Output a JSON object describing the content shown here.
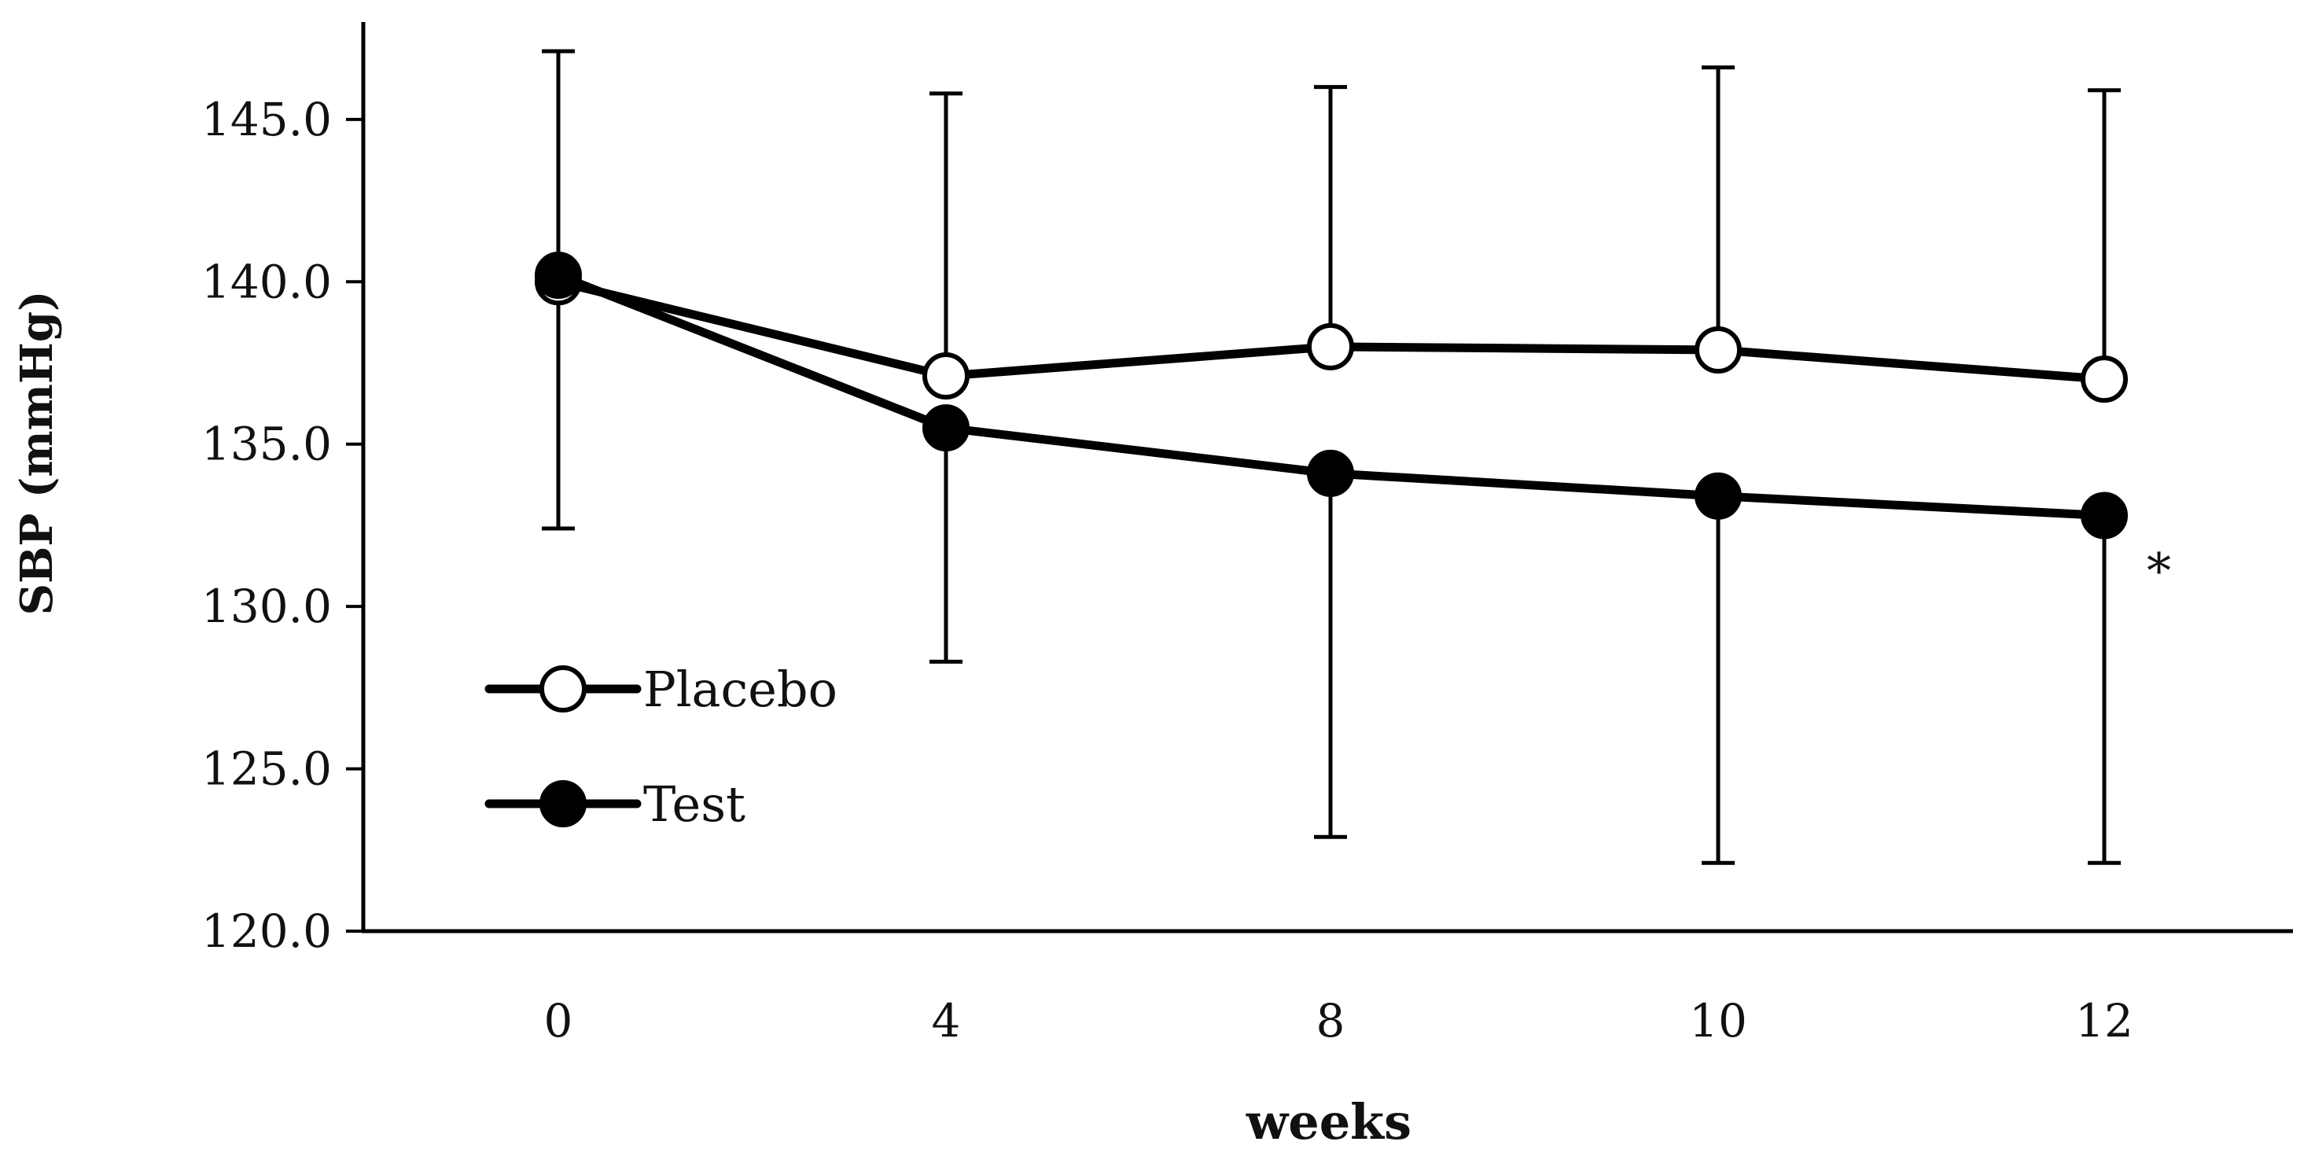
{
  "chart_data": {
    "type": "line",
    "title": "",
    "xlabel": "weeks",
    "ylabel": "SBP (mmHg)",
    "ylim": [
      120.0,
      148.0
    ],
    "yticks": [
      "120.0",
      "125.0",
      "130.0",
      "135.0",
      "140.0",
      "145.0"
    ],
    "categories": [
      "0",
      "4",
      "8",
      "10",
      "12"
    ],
    "series": [
      {
        "name": "Placebo",
        "marker": "open-circle",
        "values": [
          140.0,
          137.1,
          138.0,
          137.9,
          137.0
        ],
        "error_high": [
          147.1,
          145.8,
          146.0,
          146.6,
          145.9
        ],
        "error_low": [
          null,
          null,
          null,
          null,
          null
        ]
      },
      {
        "name": "Test",
        "marker": "filled-circle",
        "values": [
          140.2,
          135.5,
          134.1,
          133.4,
          132.8
        ],
        "error_high": [
          null,
          null,
          null,
          null,
          null
        ],
        "error_low": [
          132.4,
          128.3,
          122.9,
          122.1,
          122.1
        ]
      }
    ],
    "annotations": [
      {
        "text": "*",
        "category": "12",
        "series": "Test"
      }
    ],
    "legend": "bottom-left",
    "grid": false
  }
}
